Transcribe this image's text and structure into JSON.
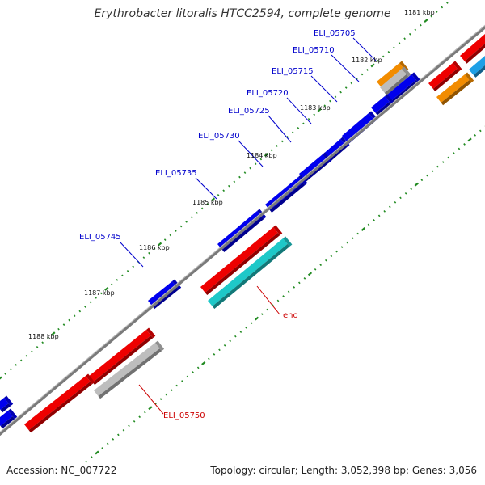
{
  "title": "Erythrobacter litoralis HTCC2594, complete genome",
  "footer": {
    "accession": "Accession: NC_007722",
    "topology": "Topology: circular; Length: 3,052,398 bp; Genes: 3,056"
  },
  "colors": {
    "backbone": "#808080",
    "tick": "#228b22",
    "label_forward": "#0000cc",
    "label_reverse": "#cc0000",
    "blue": "#0000ee",
    "red": "#ee0000",
    "gray": "#bdbdbd",
    "cyan": "#1ec8c8",
    "orange": "#f28c00",
    "light_blue": "#1ea0e6"
  },
  "ruler": {
    "labels": [
      "1181 kbp",
      "1182 kbp",
      "1183 kbp",
      "1184 kbp",
      "1185 kbp",
      "1186 kbp",
      "1187 kbp",
      "1188 kbp"
    ]
  },
  "gene_labels": {
    "forward": [
      "ELI_05705",
      "ELI_05710",
      "ELI_05715",
      "ELI_05720",
      "ELI_05725",
      "ELI_05730",
      "ELI_05735",
      "ELI_05745"
    ],
    "reverse": [
      "eno",
      "ELI_05750"
    ]
  }
}
